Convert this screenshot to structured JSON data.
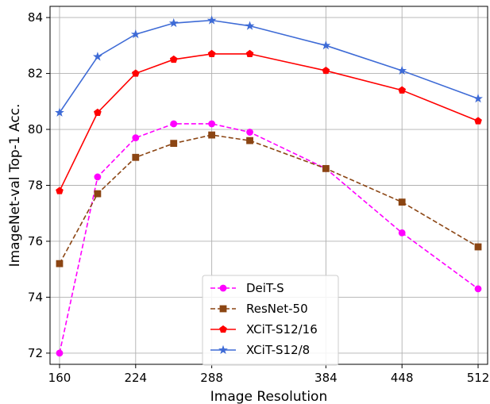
{
  "chart_data": {
    "type": "line",
    "xlabel": "Image Resolution",
    "ylabel": "ImageNet-val Top-1 Acc.",
    "xlim": [
      152,
      520
    ],
    "ylim": [
      71.6,
      84.4
    ],
    "xticks": [
      160,
      224,
      288,
      384,
      448,
      512
    ],
    "yticks": [
      72,
      74,
      76,
      78,
      80,
      82,
      84
    ],
    "grid": true,
    "legend_position": "lower-center",
    "x": [
      160,
      192,
      224,
      256,
      288,
      320,
      384,
      448,
      512
    ],
    "series": [
      {
        "name": "DeiT-S",
        "color": "#ff00ff",
        "linestyle": "dashed",
        "marker": "circle",
        "values": [
          72.0,
          78.3,
          79.7,
          80.2,
          80.2,
          79.9,
          78.6,
          76.3,
          74.3
        ]
      },
      {
        "name": "ResNet-50",
        "color": "#8b4513",
        "linestyle": "dashed",
        "marker": "square",
        "values": [
          75.2,
          77.7,
          79.0,
          79.5,
          79.8,
          79.6,
          78.6,
          77.4,
          75.8
        ]
      },
      {
        "name": "XCiT-S12/16",
        "color": "#ff0000",
        "linestyle": "solid",
        "marker": "pentagon",
        "values": [
          77.8,
          80.6,
          82.0,
          82.5,
          82.7,
          82.7,
          82.1,
          81.4,
          80.3
        ]
      },
      {
        "name": "XCiT-S12/8",
        "color": "#3e6bd6",
        "linestyle": "solid",
        "marker": "star",
        "values": [
          80.6,
          82.6,
          83.4,
          83.8,
          83.9,
          83.7,
          83.0,
          82.1,
          81.1
        ]
      }
    ]
  }
}
